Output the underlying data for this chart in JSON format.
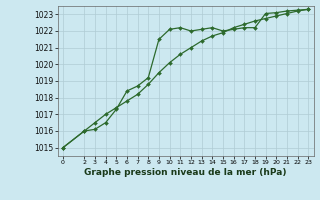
{
  "title": "Graphe pression niveau de la mer (hPa)",
  "background_color": "#cce8f0",
  "grid_color": "#b0ccd4",
  "line_color": "#2d6a2d",
  "xlim": [
    -0.5,
    23.5
  ],
  "ylim": [
    1014.5,
    1023.5
  ],
  "yticks": [
    1015,
    1016,
    1017,
    1018,
    1019,
    1020,
    1021,
    1022,
    1023
  ],
  "xticks": [
    0,
    2,
    3,
    4,
    5,
    6,
    7,
    8,
    9,
    10,
    11,
    12,
    13,
    14,
    15,
    16,
    17,
    18,
    19,
    20,
    21,
    22,
    23
  ],
  "line1_x": [
    0,
    2,
    3,
    4,
    5,
    6,
    7,
    8,
    9,
    10,
    11,
    12,
    13,
    14,
    15,
    16,
    17,
    18,
    19,
    20,
    21,
    22,
    23
  ],
  "line1_y": [
    1015.0,
    1016.0,
    1016.1,
    1016.5,
    1017.3,
    1018.4,
    1018.7,
    1019.2,
    1021.5,
    1022.1,
    1022.2,
    1022.0,
    1022.1,
    1022.2,
    1022.0,
    1022.1,
    1022.2,
    1022.2,
    1023.05,
    1023.1,
    1023.2,
    1023.25,
    1023.3
  ],
  "line2_x": [
    0,
    2,
    3,
    4,
    5,
    6,
    7,
    8,
    9,
    10,
    11,
    12,
    13,
    14,
    15,
    16,
    17,
    18,
    19,
    20,
    21,
    22,
    23
  ],
  "line2_y": [
    1015.0,
    1016.0,
    1016.5,
    1017.0,
    1017.4,
    1017.8,
    1018.2,
    1018.8,
    1019.5,
    1020.1,
    1020.6,
    1021.0,
    1021.4,
    1021.7,
    1021.9,
    1022.2,
    1022.4,
    1022.6,
    1022.75,
    1022.9,
    1023.05,
    1023.2,
    1023.3
  ],
  "title_fontsize": 6.5,
  "ytick_fontsize": 5.5,
  "xtick_fontsize": 4.5
}
